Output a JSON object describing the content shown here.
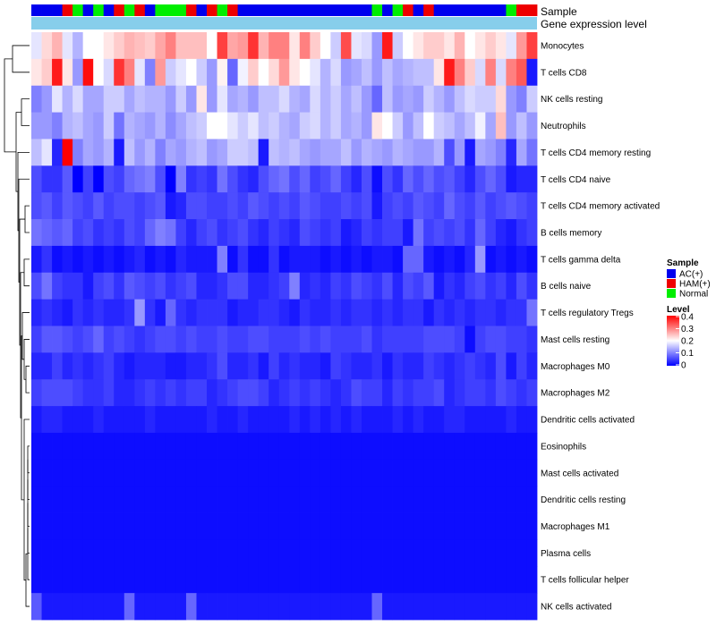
{
  "chart_data": {
    "type": "heatmap",
    "title": "",
    "annotation_tracks": [
      "Sample",
      "Gene expression level"
    ],
    "samples": [
      "AC(+)",
      "AC(+)",
      "AC(+)",
      "HAM(+)",
      "Normal",
      "AC(+)",
      "Normal",
      "AC(+)",
      "HAM(+)",
      "Normal",
      "HAM(+)",
      "AC(+)",
      "Normal",
      "Normal",
      "Normal",
      "HAM(+)",
      "AC(+)",
      "HAM(+)",
      "Normal",
      "HAM(+)",
      "AC(+)",
      "AC(+)",
      "AC(+)",
      "AC(+)",
      "AC(+)",
      "AC(+)",
      "AC(+)",
      "AC(+)",
      "AC(+)",
      "AC(+)",
      "AC(+)",
      "AC(+)",
      "AC(+)",
      "Normal",
      "AC(+)",
      "Normal",
      "HAM(+)",
      "AC(+)",
      "HAM(+)",
      "AC(+)",
      "AC(+)",
      "AC(+)",
      "AC(+)",
      "AC(+)",
      "AC(+)",
      "AC(+)",
      "Normal",
      "HAM(+)",
      "HAM(+)"
    ],
    "rows": [
      "Monocytes",
      "T cells CD8",
      "NK cells resting",
      "Neutrophils",
      "T cells CD4 memory resting",
      "T cells CD4 naive",
      "T cells CD4 memory activated",
      "B cells memory",
      "T cells gamma delta",
      "B cells naive",
      "T cells regulatory  Tregs",
      "Mast cells resting",
      "Macrophages M0",
      "Macrophages M2",
      "Dendritic cells activated",
      "Eosinophils",
      "Mast cells activated",
      "Dendritic cells resting",
      "Macrophages M1",
      "Plasma cells",
      "T cells follicular helper",
      "NK cells activated"
    ],
    "values": [
      [
        0.18,
        0.23,
        0.26,
        0.18,
        0.14,
        0.2,
        0.2,
        0.22,
        0.24,
        0.26,
        0.25,
        0.24,
        0.27,
        0.3,
        0.25,
        0.25,
        0.25,
        0.2,
        0.35,
        0.27,
        0.28,
        0.36,
        0.26,
        0.3,
        0.3,
        0.22,
        0.3,
        0.24,
        0.2,
        0.16,
        0.34,
        0.18,
        0.17,
        0.12,
        0.38,
        0.16,
        0.2,
        0.22,
        0.24,
        0.24,
        0.22,
        0.26,
        0.2,
        0.22,
        0.24,
        0.22,
        0.18,
        0.28,
        0.35
      ],
      [
        0.22,
        0.24,
        0.38,
        0.22,
        0.12,
        0.39,
        0.2,
        0.17,
        0.36,
        0.3,
        0.18,
        0.1,
        0.28,
        0.16,
        0.18,
        0.2,
        0.16,
        0.12,
        0.21,
        0.08,
        0.19,
        0.24,
        0.2,
        0.23,
        0.28,
        0.22,
        0.2,
        0.18,
        0.14,
        0.17,
        0.12,
        0.13,
        0.15,
        0.12,
        0.15,
        0.13,
        0.14,
        0.15,
        0.15,
        0.22,
        0.38,
        0.3,
        0.24,
        0.17,
        0.3,
        0.17,
        0.3,
        0.33,
        0.02
      ],
      [
        0.1,
        0.12,
        0.18,
        0.14,
        0.17,
        0.13,
        0.13,
        0.16,
        0.16,
        0.13,
        0.15,
        0.14,
        0.14,
        0.12,
        0.16,
        0.12,
        0.22,
        0.12,
        0.18,
        0.13,
        0.14,
        0.12,
        0.15,
        0.15,
        0.17,
        0.14,
        0.13,
        0.17,
        0.14,
        0.16,
        0.13,
        0.15,
        0.12,
        0.08,
        0.15,
        0.12,
        0.13,
        0.12,
        0.16,
        0.14,
        0.12,
        0.15,
        0.17,
        0.16,
        0.16,
        0.23,
        0.12,
        0.1,
        0.16
      ],
      [
        0.12,
        0.12,
        0.1,
        0.14,
        0.15,
        0.13,
        0.12,
        0.16,
        0.09,
        0.14,
        0.13,
        0.12,
        0.14,
        0.11,
        0.13,
        0.15,
        0.16,
        0.2,
        0.2,
        0.18,
        0.16,
        0.18,
        0.15,
        0.16,
        0.14,
        0.13,
        0.16,
        0.17,
        0.14,
        0.16,
        0.13,
        0.14,
        0.12,
        0.22,
        0.2,
        0.16,
        0.12,
        0.15,
        0.2,
        0.16,
        0.15,
        0.13,
        0.15,
        0.19,
        0.13,
        0.25,
        0.12,
        0.15,
        0.12
      ],
      [
        0.15,
        0.18,
        0.03,
        0.4,
        0.1,
        0.13,
        0.12,
        0.14,
        0.02,
        0.15,
        0.12,
        0.14,
        0.1,
        0.13,
        0.12,
        0.14,
        0.15,
        0.12,
        0.13,
        0.16,
        0.16,
        0.15,
        0.02,
        0.15,
        0.14,
        0.15,
        0.13,
        0.12,
        0.13,
        0.13,
        0.15,
        0.12,
        0.14,
        0.13,
        0.12,
        0.14,
        0.13,
        0.12,
        0.12,
        0.14,
        0.06,
        0.12,
        0.02,
        0.13,
        0.12,
        0.1,
        0.03,
        0.13,
        0.09
      ],
      [
        0.06,
        0.04,
        0.04,
        0.07,
        0.0,
        0.05,
        0.0,
        0.06,
        0.05,
        0.08,
        0.09,
        0.1,
        0.06,
        0.0,
        0.1,
        0.04,
        0.05,
        0.04,
        0.09,
        0.06,
        0.04,
        0.03,
        0.06,
        0.08,
        0.09,
        0.06,
        0.08,
        0.05,
        0.06,
        0.08,
        0.05,
        0.03,
        0.06,
        0.01,
        0.06,
        0.04,
        0.08,
        0.06,
        0.08,
        0.06,
        0.07,
        0.05,
        0.03,
        0.06,
        0.08,
        0.06,
        0.02,
        0.03,
        0.03
      ],
      [
        0.06,
        0.07,
        0.05,
        0.07,
        0.06,
        0.05,
        0.07,
        0.05,
        0.06,
        0.06,
        0.05,
        0.06,
        0.07,
        0.02,
        0.03,
        0.06,
        0.06,
        0.05,
        0.05,
        0.06,
        0.05,
        0.07,
        0.06,
        0.05,
        0.06,
        0.05,
        0.07,
        0.06,
        0.05,
        0.05,
        0.06,
        0.05,
        0.06,
        0.02,
        0.05,
        0.06,
        0.05,
        0.07,
        0.06,
        0.05,
        0.08,
        0.06,
        0.05,
        0.07,
        0.05,
        0.06,
        0.07,
        0.06,
        0.05
      ],
      [
        0.09,
        0.08,
        0.07,
        0.08,
        0.05,
        0.06,
        0.04,
        0.05,
        0.04,
        0.06,
        0.05,
        0.08,
        0.1,
        0.09,
        0.05,
        0.03,
        0.05,
        0.06,
        0.04,
        0.05,
        0.06,
        0.04,
        0.03,
        0.05,
        0.04,
        0.03,
        0.06,
        0.05,
        0.04,
        0.05,
        0.02,
        0.03,
        0.05,
        0.04,
        0.05,
        0.05,
        0.02,
        0.09,
        0.05,
        0.06,
        0.05,
        0.06,
        0.04,
        0.08,
        0.05,
        0.03,
        0.02,
        0.04,
        0.05
      ],
      [
        0.02,
        0.04,
        0.01,
        0.02,
        0.01,
        0.02,
        0.01,
        0.02,
        0.01,
        0.02,
        0.03,
        0.01,
        0.02,
        0.01,
        0.03,
        0.02,
        0.02,
        0.02,
        0.1,
        0.01,
        0.04,
        0.01,
        0.01,
        0.04,
        0.01,
        0.02,
        0.02,
        0.02,
        0.01,
        0.02,
        0.01,
        0.02,
        0.01,
        0.02,
        0.02,
        0.01,
        0.08,
        0.08,
        0.02,
        0.01,
        0.02,
        0.01,
        0.03,
        0.12,
        0.01,
        0.02,
        0.01,
        0.02,
        0.01
      ],
      [
        0.06,
        0.09,
        0.05,
        0.04,
        0.04,
        0.02,
        0.05,
        0.06,
        0.04,
        0.07,
        0.06,
        0.05,
        0.06,
        0.04,
        0.05,
        0.06,
        0.03,
        0.03,
        0.04,
        0.06,
        0.06,
        0.03,
        0.03,
        0.04,
        0.05,
        0.1,
        0.03,
        0.04,
        0.03,
        0.05,
        0.04,
        0.06,
        0.05,
        0.04,
        0.06,
        0.03,
        0.06,
        0.05,
        0.07,
        0.02,
        0.04,
        0.03,
        0.05,
        0.06,
        0.04,
        0.05,
        0.03,
        0.06,
        0.04
      ],
      [
        0.03,
        0.04,
        0.03,
        0.02,
        0.04,
        0.03,
        0.04,
        0.03,
        0.03,
        0.04,
        0.12,
        0.04,
        0.02,
        0.08,
        0.04,
        0.03,
        0.04,
        0.04,
        0.04,
        0.02,
        0.03,
        0.03,
        0.04,
        0.04,
        0.03,
        0.02,
        0.04,
        0.03,
        0.03,
        0.04,
        0.03,
        0.04,
        0.04,
        0.03,
        0.04,
        0.03,
        0.04,
        0.04,
        0.02,
        0.04,
        0.03,
        0.04,
        0.03,
        0.04,
        0.04,
        0.03,
        0.04,
        0.04,
        0.09
      ],
      [
        0.05,
        0.07,
        0.07,
        0.06,
        0.05,
        0.06,
        0.08,
        0.05,
        0.06,
        0.05,
        0.04,
        0.05,
        0.06,
        0.06,
        0.05,
        0.06,
        0.05,
        0.05,
        0.06,
        0.05,
        0.05,
        0.06,
        0.06,
        0.05,
        0.05,
        0.05,
        0.06,
        0.05,
        0.06,
        0.05,
        0.05,
        0.05,
        0.06,
        0.04,
        0.05,
        0.05,
        0.05,
        0.05,
        0.06,
        0.06,
        0.06,
        0.05,
        0.01,
        0.05,
        0.06,
        0.06,
        0.05,
        0.05,
        0.04
      ],
      [
        0.03,
        0.03,
        0.05,
        0.03,
        0.04,
        0.03,
        0.04,
        0.05,
        0.03,
        0.02,
        0.03,
        0.03,
        0.03,
        0.02,
        0.02,
        0.03,
        0.03,
        0.04,
        0.06,
        0.03,
        0.03,
        0.04,
        0.02,
        0.05,
        0.03,
        0.04,
        0.03,
        0.03,
        0.02,
        0.05,
        0.04,
        0.03,
        0.03,
        0.04,
        0.02,
        0.04,
        0.03,
        0.03,
        0.05,
        0.04,
        0.03,
        0.04,
        0.05,
        0.04,
        0.03,
        0.06,
        0.02,
        0.05,
        0.03
      ],
      [
        0.05,
        0.06,
        0.06,
        0.06,
        0.05,
        0.04,
        0.04,
        0.05,
        0.03,
        0.03,
        0.04,
        0.05,
        0.04,
        0.05,
        0.04,
        0.05,
        0.05,
        0.03,
        0.04,
        0.05,
        0.06,
        0.06,
        0.05,
        0.03,
        0.04,
        0.05,
        0.04,
        0.05,
        0.04,
        0.03,
        0.04,
        0.06,
        0.05,
        0.05,
        0.03,
        0.05,
        0.04,
        0.05,
        0.05,
        0.06,
        0.03,
        0.04,
        0.05,
        0.05,
        0.04,
        0.06,
        0.05,
        0.04,
        0.05
      ],
      [
        0.02,
        0.03,
        0.03,
        0.02,
        0.02,
        0.02,
        0.03,
        0.02,
        0.02,
        0.02,
        0.02,
        0.03,
        0.02,
        0.02,
        0.02,
        0.02,
        0.02,
        0.03,
        0.02,
        0.02,
        0.03,
        0.02,
        0.02,
        0.02,
        0.02,
        0.03,
        0.02,
        0.03,
        0.02,
        0.03,
        0.02,
        0.03,
        0.02,
        0.02,
        0.02,
        0.03,
        0.02,
        0.03,
        0.02,
        0.02,
        0.03,
        0.03,
        0.02,
        0.02,
        0.02,
        0.02,
        0.03,
        0.02,
        0.02
      ],
      [
        0.01,
        0.01,
        0.01,
        0.01,
        0.01,
        0.01,
        0.01,
        0.01,
        0.01,
        0.01,
        0.01,
        0.01,
        0.01,
        0.01,
        0.01,
        0.01,
        0.01,
        0.01,
        0.01,
        0.01,
        0.01,
        0.01,
        0.01,
        0.01,
        0.01,
        0.01,
        0.01,
        0.01,
        0.01,
        0.01,
        0.01,
        0.01,
        0.01,
        0.01,
        0.01,
        0.01,
        0.01,
        0.01,
        0.01,
        0.01,
        0.01,
        0.01,
        0.01,
        0.01,
        0.01,
        0.01,
        0.01,
        0.01,
        0.01
      ],
      [
        0.01,
        0.01,
        0.01,
        0.01,
        0.01,
        0.01,
        0.01,
        0.01,
        0.01,
        0.01,
        0.01,
        0.01,
        0.01,
        0.01,
        0.01,
        0.01,
        0.01,
        0.01,
        0.01,
        0.01,
        0.01,
        0.01,
        0.01,
        0.01,
        0.01,
        0.01,
        0.01,
        0.01,
        0.01,
        0.01,
        0.01,
        0.01,
        0.01,
        0.01,
        0.01,
        0.01,
        0.01,
        0.01,
        0.01,
        0.01,
        0.01,
        0.01,
        0.01,
        0.01,
        0.01,
        0.01,
        0.01,
        0.01,
        0.01
      ],
      [
        0.01,
        0.01,
        0.01,
        0.01,
        0.01,
        0.01,
        0.01,
        0.01,
        0.01,
        0.01,
        0.01,
        0.01,
        0.01,
        0.01,
        0.01,
        0.01,
        0.01,
        0.01,
        0.01,
        0.01,
        0.01,
        0.01,
        0.01,
        0.01,
        0.01,
        0.01,
        0.01,
        0.01,
        0.01,
        0.01,
        0.01,
        0.01,
        0.01,
        0.01,
        0.01,
        0.01,
        0.01,
        0.01,
        0.01,
        0.01,
        0.01,
        0.01,
        0.01,
        0.01,
        0.01,
        0.01,
        0.01,
        0.01,
        0.01
      ],
      [
        0.01,
        0.01,
        0.01,
        0.01,
        0.01,
        0.01,
        0.01,
        0.01,
        0.01,
        0.01,
        0.01,
        0.01,
        0.01,
        0.01,
        0.01,
        0.01,
        0.01,
        0.01,
        0.01,
        0.01,
        0.01,
        0.01,
        0.01,
        0.01,
        0.01,
        0.01,
        0.01,
        0.01,
        0.01,
        0.01,
        0.01,
        0.01,
        0.01,
        0.01,
        0.01,
        0.01,
        0.01,
        0.01,
        0.01,
        0.01,
        0.01,
        0.01,
        0.01,
        0.01,
        0.01,
        0.01,
        0.01,
        0.01,
        0.01
      ],
      [
        0.01,
        0.01,
        0.01,
        0.01,
        0.01,
        0.01,
        0.01,
        0.01,
        0.01,
        0.01,
        0.01,
        0.01,
        0.01,
        0.01,
        0.01,
        0.01,
        0.01,
        0.01,
        0.01,
        0.01,
        0.01,
        0.01,
        0.01,
        0.01,
        0.01,
        0.01,
        0.01,
        0.01,
        0.01,
        0.01,
        0.01,
        0.01,
        0.01,
        0.01,
        0.01,
        0.01,
        0.01,
        0.01,
        0.01,
        0.01,
        0.01,
        0.01,
        0.01,
        0.01,
        0.01,
        0.01,
        0.01,
        0.01,
        0.01
      ],
      [
        0.01,
        0.01,
        0.01,
        0.01,
        0.01,
        0.01,
        0.01,
        0.01,
        0.01,
        0.01,
        0.01,
        0.01,
        0.01,
        0.01,
        0.01,
        0.01,
        0.01,
        0.01,
        0.01,
        0.01,
        0.01,
        0.01,
        0.01,
        0.01,
        0.01,
        0.01,
        0.01,
        0.01,
        0.01,
        0.01,
        0.01,
        0.01,
        0.01,
        0.01,
        0.01,
        0.01,
        0.01,
        0.01,
        0.01,
        0.01,
        0.01,
        0.01,
        0.01,
        0.01,
        0.01,
        0.01,
        0.01,
        0.01,
        0.01
      ],
      [
        0.07,
        0.02,
        0.02,
        0.02,
        0.02,
        0.02,
        0.02,
        0.02,
        0.02,
        0.08,
        0.02,
        0.02,
        0.02,
        0.02,
        0.02,
        0.08,
        0.02,
        0.02,
        0.02,
        0.02,
        0.02,
        0.02,
        0.02,
        0.02,
        0.02,
        0.02,
        0.02,
        0.02,
        0.02,
        0.02,
        0.02,
        0.02,
        0.02,
        0.08,
        0.02,
        0.02,
        0.02,
        0.02,
        0.02,
        0.02,
        0.02,
        0.02,
        0.02,
        0.02,
        0.02,
        0.02,
        0.02,
        0.02,
        0.02
      ]
    ],
    "legend": {
      "sample_title": "Sample",
      "sample_groups": [
        {
          "name": "AC(+)",
          "color": "#0000ee"
        },
        {
          "name": "HAM(+)",
          "color": "#ee0000"
        },
        {
          "name": "Normal",
          "color": "#00ee00"
        }
      ],
      "level_title": "Level",
      "level_ticks": [
        "0.4",
        "0.3",
        "0.2",
        "0.1",
        "0"
      ],
      "level_range": [
        0,
        0.4
      ]
    },
    "colors": {
      "low": "#0000ff",
      "mid": "#ffffff",
      "high": "#ff0000",
      "expression_track": "#87ceeb"
    }
  }
}
